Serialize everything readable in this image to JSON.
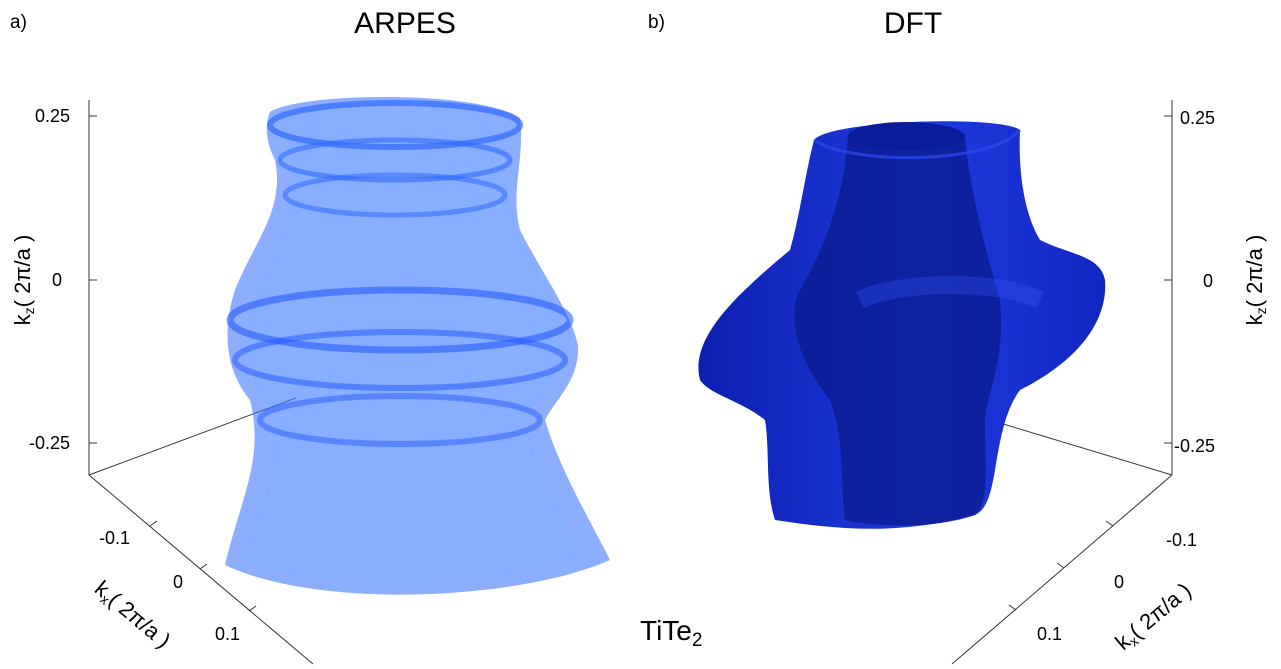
{
  "panels": {
    "a_label": "a)",
    "a_title": "ARPES",
    "b_label": "b)",
    "b_title": "DFT"
  },
  "material": {
    "base": "TiTe",
    "subscript": "2"
  },
  "axes": {
    "kz_main": "k",
    "kz_sub": "z",
    "kx_main": "k",
    "kx_sub": "x",
    "unit": "( 2π/a )",
    "kz_ticks": [
      "0.25",
      "0",
      "-0.25"
    ],
    "kx_ticks": [
      "-0.1",
      "0",
      "0.1"
    ]
  },
  "colors": {
    "arpes_points": "#2f6bff",
    "dft_surface": "#1a2fcc",
    "dft_inner": "#0a1a8a",
    "axis": "#333333"
  }
}
